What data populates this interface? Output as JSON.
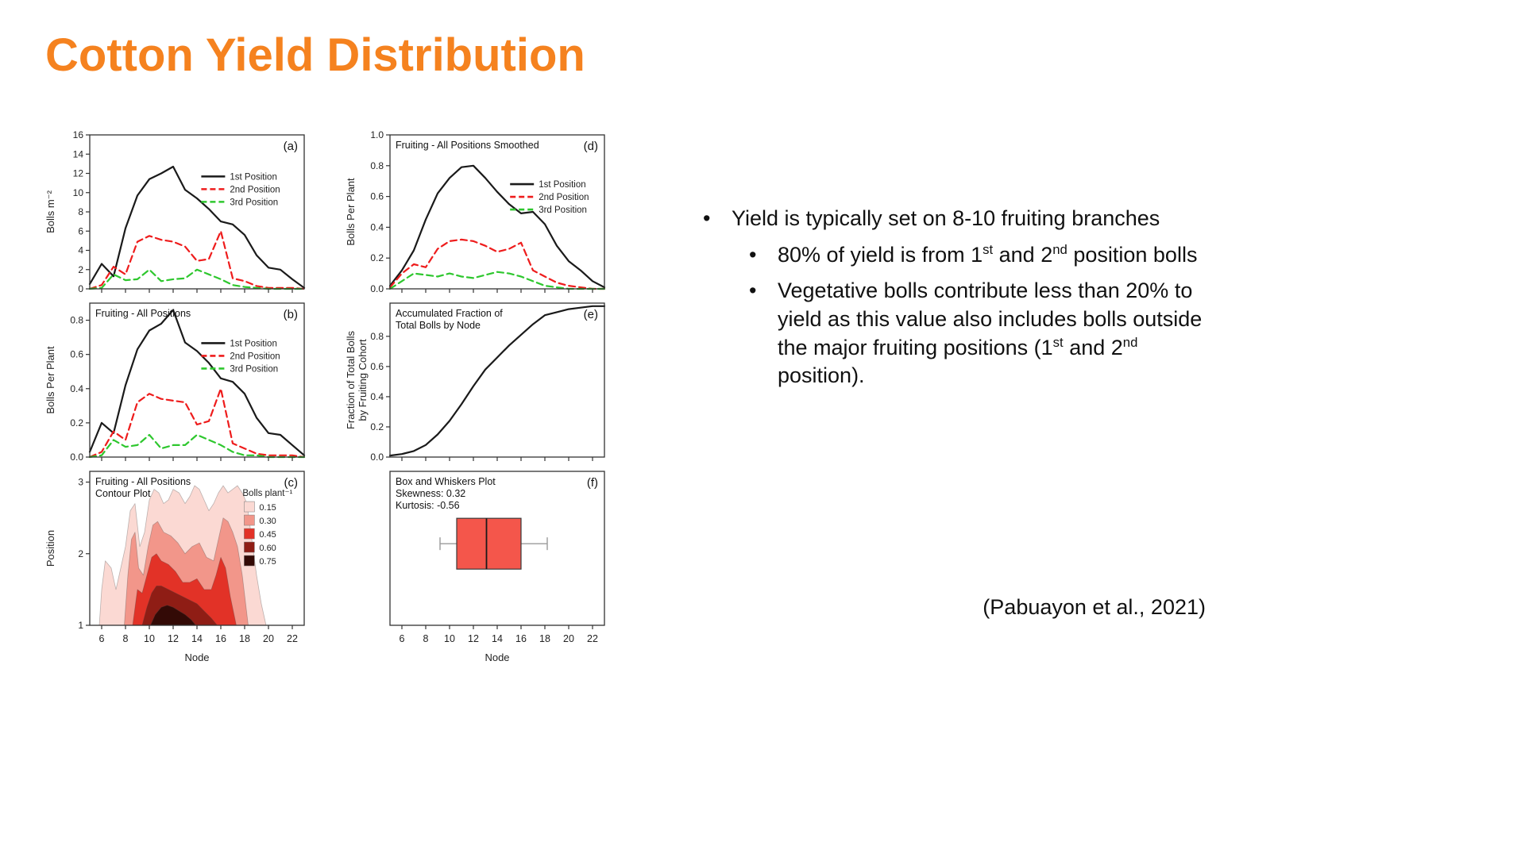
{
  "slide": {
    "title": "Cotton Yield Distribution",
    "title_color": "#f5821f",
    "citation": "(Pabuayon et al., 2021)",
    "bullets": [
      {
        "level": 1,
        "text": "Yield is typically set on 8-10 fruiting branches"
      },
      {
        "level": 2,
        "text": "80% of yield is from 1^st^ and 2^nd^ position bolls"
      },
      {
        "level": 2,
        "text": "Vegetative bolls contribute less than 20% to yield as this value also includes bolls outside the major fruiting positions (1^st^ and 2^nd^ position)."
      }
    ]
  },
  "chart_data": [
    {
      "id": "a",
      "type": "line",
      "panel_label": "(a)",
      "x": [
        5,
        6,
        7,
        8,
        9,
        10,
        11,
        12,
        13,
        14,
        15,
        16,
        17,
        18,
        19,
        20,
        21,
        22,
        23
      ],
      "xlim": [
        5,
        23
      ],
      "xticks": [
        6,
        8,
        10,
        12,
        14,
        16,
        18,
        20,
        22
      ],
      "xlabel": "Node",
      "show_x_labels": false,
      "ylim": [
        0,
        16
      ],
      "yticks": [
        0,
        2,
        4,
        6,
        8,
        10,
        12,
        14,
        16
      ],
      "ytick_dp": false,
      "ylabel": [
        "Bolls m⁻²"
      ],
      "series": [
        {
          "name": "1st Position",
          "color": "#1a1a1a",
          "dash": null,
          "values": [
            0.5,
            2.6,
            1.3,
            6.3,
            9.7,
            11.4,
            12.0,
            12.7,
            10.3,
            9.4,
            8.3,
            7.0,
            6.7,
            5.6,
            3.5,
            2.2,
            2.0,
            1.0,
            0.1
          ]
        },
        {
          "name": "2nd Position",
          "color": "#ee1c1c",
          "dash": "8 5",
          "values": [
            0.0,
            0.4,
            2.3,
            1.5,
            4.9,
            5.5,
            5.1,
            4.9,
            4.4,
            2.9,
            3.1,
            6.0,
            1.1,
            0.8,
            0.3,
            0.1,
            0.1,
            0.1,
            0.0
          ]
        },
        {
          "name": "3rd Position",
          "color": "#2ec72e",
          "dash": "8 5",
          "values": [
            0.0,
            0.1,
            1.5,
            0.9,
            1.0,
            2.0,
            0.8,
            1.0,
            1.1,
            2.0,
            1.5,
            1.0,
            0.4,
            0.2,
            0.1,
            0.0,
            0.0,
            0.0,
            0.0
          ]
        }
      ],
      "legend": {
        "pos": [
          0.52,
          0.27
        ]
      }
    },
    {
      "id": "b",
      "type": "line",
      "panel_label": "(b)",
      "title_lines": [
        "Fruiting - All Positions"
      ],
      "x": [
        5,
        6,
        7,
        8,
        9,
        10,
        11,
        12,
        13,
        14,
        15,
        16,
        17,
        18,
        19,
        20,
        21,
        22,
        23
      ],
      "xlim": [
        5,
        23
      ],
      "xticks": [
        6,
        8,
        10,
        12,
        14,
        16,
        18,
        20,
        22
      ],
      "xlabel": "Node",
      "show_x_labels": false,
      "ylim": [
        0,
        0.9
      ],
      "yticks": [
        0,
        0.2,
        0.4,
        0.6,
        0.8
      ],
      "ytick_dp": true,
      "ylabel": [
        "Bolls Per Plant"
      ],
      "series": [
        {
          "name": "1st Position",
          "color": "#1a1a1a",
          "dash": null,
          "values": [
            0.03,
            0.2,
            0.14,
            0.42,
            0.63,
            0.74,
            0.78,
            0.86,
            0.67,
            0.62,
            0.55,
            0.46,
            0.44,
            0.37,
            0.23,
            0.14,
            0.13,
            0.07,
            0.01
          ]
        },
        {
          "name": "2nd Position",
          "color": "#ee1c1c",
          "dash": "8 5",
          "values": [
            0.0,
            0.03,
            0.15,
            0.1,
            0.32,
            0.37,
            0.34,
            0.33,
            0.32,
            0.19,
            0.21,
            0.4,
            0.08,
            0.05,
            0.02,
            0.01,
            0.01,
            0.01,
            0.0
          ]
        },
        {
          "name": "3rd Position",
          "color": "#2ec72e",
          "dash": "8 5",
          "values": [
            0.0,
            0.01,
            0.1,
            0.06,
            0.07,
            0.13,
            0.05,
            0.07,
            0.07,
            0.13,
            0.1,
            0.07,
            0.03,
            0.01,
            0.01,
            0.0,
            0.0,
            0.0,
            0.0
          ]
        }
      ],
      "legend": {
        "pos": [
          0.52,
          0.26
        ]
      }
    },
    {
      "id": "c",
      "type": "contour",
      "panel_label": "(c)",
      "title_lines": [
        "Fruiting - All Positions",
        "Contour Plot"
      ],
      "xlim": [
        5,
        23
      ],
      "xticks": [
        6,
        8,
        10,
        12,
        14,
        16,
        18,
        20,
        22
      ],
      "xlabel": "Node",
      "show_x_labels": true,
      "ylim": [
        1,
        3.15
      ],
      "yticks": [
        1,
        2,
        3
      ],
      "ytick_dp": false,
      "ylabel": [
        "Position"
      ],
      "legend_levels": {
        "title": "Bolls plant⁻¹",
        "pos": [
          0.72,
          0.16
        ]
      },
      "levels": [
        {
          "value": 0.15,
          "color": "#fbd9d3",
          "points": [
            [
              5.8,
              1
            ],
            [
              6,
              1.5
            ],
            [
              6.3,
              1.9
            ],
            [
              6.8,
              1.8
            ],
            [
              7.2,
              1.5
            ],
            [
              7.6,
              1.8
            ],
            [
              8,
              2.1
            ],
            [
              8.4,
              2.6
            ],
            [
              8.8,
              2.7
            ],
            [
              9.2,
              2.1
            ],
            [
              9.6,
              2.3
            ],
            [
              10,
              2.75
            ],
            [
              10.4,
              2.9
            ],
            [
              10.8,
              2.85
            ],
            [
              11.2,
              2.7
            ],
            [
              11.6,
              2.75
            ],
            [
              12,
              2.9
            ],
            [
              12.5,
              2.85
            ],
            [
              13,
              2.7
            ],
            [
              13.4,
              2.8
            ],
            [
              13.8,
              2.95
            ],
            [
              14.2,
              2.9
            ],
            [
              14.6,
              2.75
            ],
            [
              15,
              2.6
            ],
            [
              15.4,
              2.7
            ],
            [
              15.8,
              2.85
            ],
            [
              16.2,
              2.95
            ],
            [
              16.6,
              2.85
            ],
            [
              17,
              2.9
            ],
            [
              17.4,
              2.95
            ],
            [
              17.8,
              2.85
            ],
            [
              18.2,
              2.7
            ],
            [
              18.6,
              2.2
            ],
            [
              19,
              1.7
            ],
            [
              19.4,
              1.3
            ],
            [
              19.8,
              1
            ]
          ]
        },
        {
          "value": 0.3,
          "color": "#f2968a",
          "points": [
            [
              7.9,
              1
            ],
            [
              8.2,
              1.7
            ],
            [
              8.5,
              2.2
            ],
            [
              8.8,
              2.3
            ],
            [
              9.1,
              1.8
            ],
            [
              9.5,
              1.7
            ],
            [
              9.9,
              2.1
            ],
            [
              10.3,
              2.4
            ],
            [
              10.7,
              2.45
            ],
            [
              11.2,
              2.3
            ],
            [
              11.8,
              2.25
            ],
            [
              12.4,
              2.15
            ],
            [
              13,
              2.0
            ],
            [
              13.6,
              2.1
            ],
            [
              14.2,
              2.15
            ],
            [
              14.8,
              1.95
            ],
            [
              15.4,
              1.9
            ],
            [
              15.8,
              2.2
            ],
            [
              16.2,
              2.5
            ],
            [
              16.6,
              2.45
            ],
            [
              17,
              2.3
            ],
            [
              17.4,
              2.1
            ],
            [
              17.8,
              1.7
            ],
            [
              18.3,
              1
            ]
          ]
        },
        {
          "value": 0.45,
          "color": "#e23227",
          "points": [
            [
              8.6,
              1
            ],
            [
              9,
              1.5
            ],
            [
              9.4,
              1.45
            ],
            [
              9.8,
              1.7
            ],
            [
              10.2,
              1.95
            ],
            [
              10.6,
              2.0
            ],
            [
              11,
              1.9
            ],
            [
              11.6,
              1.85
            ],
            [
              12.2,
              1.75
            ],
            [
              12.8,
              1.6
            ],
            [
              13.4,
              1.6
            ],
            [
              14,
              1.65
            ],
            [
              14.6,
              1.5
            ],
            [
              15.2,
              1.5
            ],
            [
              15.6,
              1.7
            ],
            [
              16,
              1.95
            ],
            [
              16.4,
              1.8
            ],
            [
              16.8,
              1.4
            ],
            [
              17.3,
              1
            ]
          ]
        },
        {
          "value": 0.6,
          "color": "#8f1d15",
          "points": [
            [
              9.4,
              1
            ],
            [
              9.8,
              1.25
            ],
            [
              10.2,
              1.45
            ],
            [
              10.6,
              1.55
            ],
            [
              11,
              1.55
            ],
            [
              11.6,
              1.5
            ],
            [
              12.2,
              1.45
            ],
            [
              12.8,
              1.4
            ],
            [
              13.4,
              1.35
            ],
            [
              14,
              1.3
            ],
            [
              14.6,
              1.2
            ],
            [
              15.2,
              1.1
            ],
            [
              15.7,
              1
            ]
          ]
        },
        {
          "value": 0.75,
          "color": "#330a06",
          "points": [
            [
              10.1,
              1
            ],
            [
              10.5,
              1.15
            ],
            [
              11,
              1.25
            ],
            [
              11.5,
              1.28
            ],
            [
              12,
              1.25
            ],
            [
              12.5,
              1.2
            ],
            [
              13,
              1.15
            ],
            [
              13.5,
              1.08
            ],
            [
              13.9,
              1
            ]
          ]
        }
      ]
    },
    {
      "id": "d",
      "type": "line",
      "panel_label": "(d)",
      "title_lines": [
        "Fruiting - All Positions Smoothed"
      ],
      "x": [
        5,
        6,
        7,
        8,
        9,
        10,
        11,
        12,
        13,
        14,
        15,
        16,
        17,
        18,
        19,
        20,
        21,
        22,
        23
      ],
      "xlim": [
        5,
        23
      ],
      "xticks": [
        6,
        8,
        10,
        12,
        14,
        16,
        18,
        20,
        22
      ],
      "xlabel": "Node",
      "show_x_labels": false,
      "ylim": [
        0,
        1.0
      ],
      "yticks": [
        0,
        0.2,
        0.4,
        0.6,
        0.8,
        1.0
      ],
      "ytick_dp": true,
      "ylabel": [
        "Bolls Per Plant"
      ],
      "series": [
        {
          "name": "1st Position",
          "color": "#1a1a1a",
          "dash": null,
          "values": [
            0.02,
            0.12,
            0.25,
            0.45,
            0.62,
            0.72,
            0.79,
            0.8,
            0.72,
            0.63,
            0.55,
            0.49,
            0.5,
            0.42,
            0.28,
            0.18,
            0.12,
            0.05,
            0.01
          ]
        },
        {
          "name": "2nd Position",
          "color": "#ee1c1c",
          "dash": "8 5",
          "values": [
            0.01,
            0.1,
            0.16,
            0.14,
            0.26,
            0.31,
            0.32,
            0.31,
            0.28,
            0.24,
            0.26,
            0.3,
            0.12,
            0.08,
            0.04,
            0.02,
            0.01,
            0.0,
            0.0
          ]
        },
        {
          "name": "3rd Position",
          "color": "#2ec72e",
          "dash": "8 5",
          "values": [
            0.0,
            0.05,
            0.1,
            0.09,
            0.08,
            0.1,
            0.08,
            0.07,
            0.09,
            0.11,
            0.1,
            0.08,
            0.05,
            0.02,
            0.01,
            0.0,
            0.0,
            0.0,
            0.0
          ]
        }
      ],
      "legend": {
        "pos": [
          0.56,
          0.32
        ]
      }
    },
    {
      "id": "e",
      "type": "line",
      "panel_label": "(e)",
      "title_lines": [
        "Accumulated Fraction of",
        "Total Bolls by Node"
      ],
      "x": [
        5,
        6,
        7,
        8,
        9,
        10,
        11,
        12,
        13,
        14,
        15,
        16,
        17,
        18,
        19,
        20,
        21,
        22,
        23
      ],
      "xlim": [
        5,
        23
      ],
      "xticks": [
        6,
        8,
        10,
        12,
        14,
        16,
        18,
        20,
        22
      ],
      "xlabel": "Node",
      "show_x_labels": false,
      "ylim": [
        0,
        1.02
      ],
      "yticks": [
        0,
        0.2,
        0.4,
        0.6,
        0.8
      ],
      "ytick_dp": true,
      "ylabel": [
        "Fraction of Total Bolls",
        "by Fruiting Cohort"
      ],
      "series": [
        {
          "name": "Accumulated Fraction",
          "color": "#1a1a1a",
          "dash": null,
          "values": [
            0.01,
            0.02,
            0.04,
            0.08,
            0.15,
            0.24,
            0.35,
            0.47,
            0.58,
            0.66,
            0.74,
            0.81,
            0.88,
            0.94,
            0.96,
            0.98,
            0.99,
            1.0,
            1.0
          ]
        }
      ]
    },
    {
      "id": "f",
      "type": "box",
      "panel_label": "(f)",
      "title_lines": [
        "Box and Whiskers Plot",
        "Skewness: 0.32",
        "Kurtosis: -0.56"
      ],
      "xlim": [
        5,
        23
      ],
      "xticks": [
        6,
        8,
        10,
        12,
        14,
        16,
        18,
        20,
        22
      ],
      "xlabel": "Node",
      "show_x_labels": true,
      "ylim": [
        0,
        1
      ],
      "box_color": "#f4564b",
      "stats": {
        "whisker_low": 9.2,
        "q1": 10.6,
        "median": 13.1,
        "q3": 16.0,
        "whisker_high": 18.2
      }
    }
  ]
}
